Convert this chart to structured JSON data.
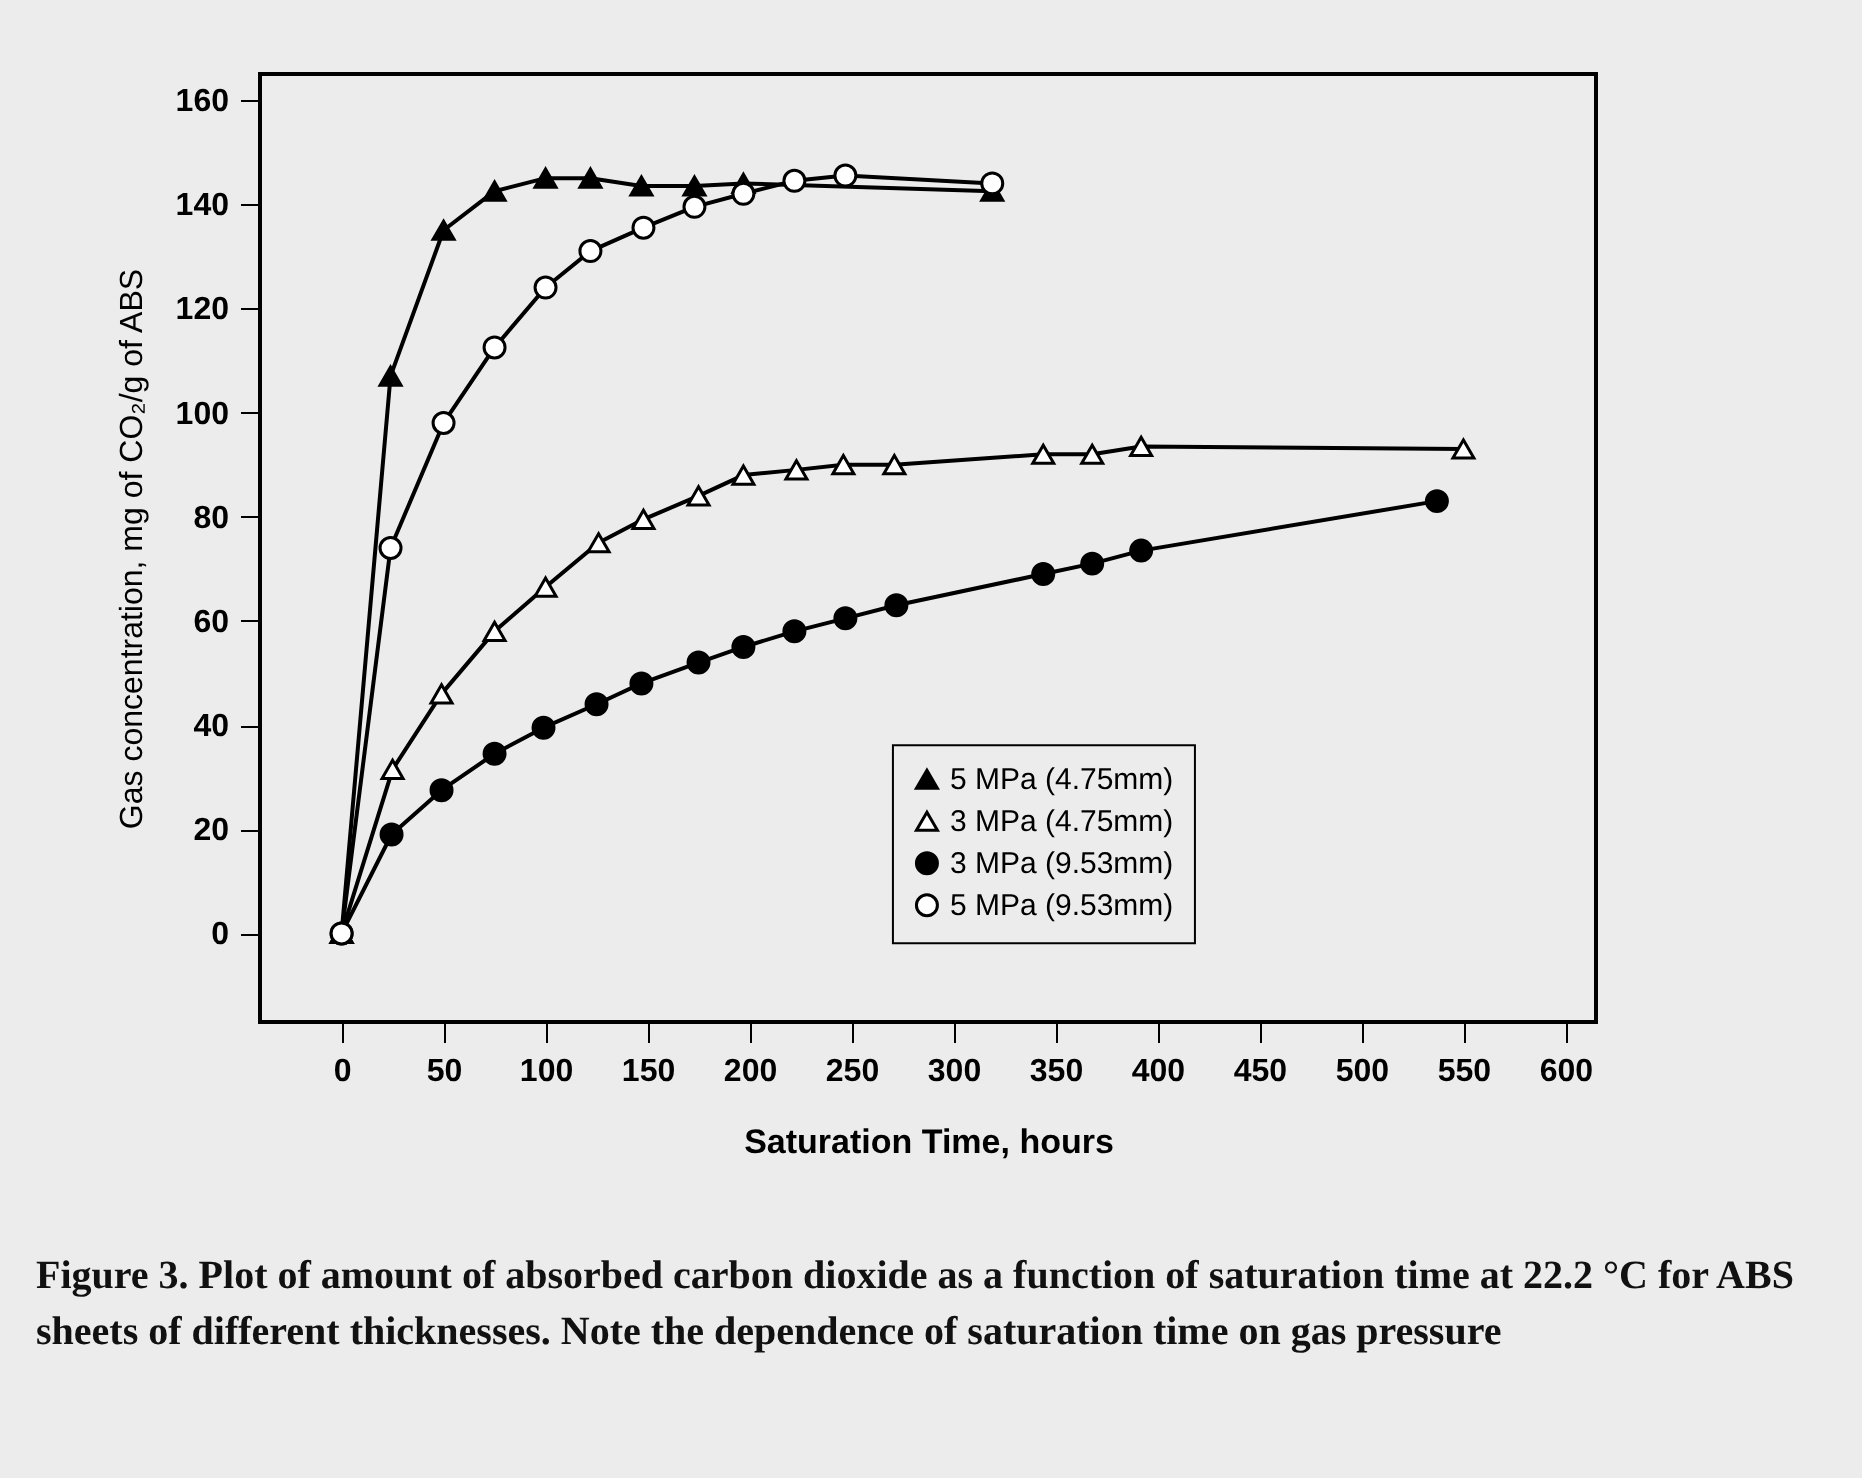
{
  "chart_data": {
    "type": "line",
    "xlabel": "Saturation Time, hours",
    "ylabel": "Gas concentration, mg of CO₂/g of ABS",
    "annotations": [
      "Figure 3. Plot of amount of absorbed carbon dioxide as a function of saturation time at 22.2 °C for ABS sheets of different thicknesses. Note the dependence of saturation time on gas pressure"
    ],
    "xlim": [
      -40,
      615
    ],
    "ylim": [
      -17,
      165
    ],
    "xticks": [
      0,
      50,
      100,
      150,
      200,
      250,
      300,
      350,
      400,
      450,
      500,
      550,
      600
    ],
    "yticks": [
      0,
      20,
      40,
      60,
      80,
      100,
      120,
      140,
      160
    ],
    "grid": false,
    "legend": "bottom right",
    "series": [
      {
        "name": "5 MPa (4.75mm)",
        "color": "#000000",
        "marker": "triangle",
        "x": [
          0,
          24,
          50,
          75,
          100,
          122,
          147,
          173,
          197,
          319
        ],
        "values": [
          0,
          107,
          135,
          142.5,
          145,
          145,
          143.5,
          143.5,
          144,
          142.5
        ]
      },
      {
        "name": "3 MPa (4.75mm)",
        "color": "#000000",
        "marker": "triangle",
        "colors": [
          "#ffffff",
          "#ffffff",
          "#ffffff",
          "#ffffff",
          "#ffffff",
          "#ffffff",
          "#ffffff",
          "#ffffff",
          "#ffffff",
          "#ffffff",
          "#ffffff",
          "#ffffff",
          "#ffffff",
          "#ffffff",
          "#ffffff",
          "#ffffff"
        ],
        "x": [
          0,
          25,
          49,
          75,
          100,
          126,
          148,
          175,
          197,
          223,
          246,
          271,
          344,
          368,
          392,
          550
        ],
        "values": [
          0,
          31.5,
          46,
          58,
          66.5,
          75,
          79.5,
          84,
          88,
          89,
          90,
          90,
          92,
          92,
          93.5,
          93
        ]
      },
      {
        "name": "3 MPa (9.53mm)",
        "color": "#000000",
        "marker": "circle",
        "x": [
          0,
          24.5,
          49,
          75,
          99,
          125,
          147,
          175,
          197,
          222,
          247,
          272,
          344,
          368,
          392,
          537
        ],
        "values": [
          0,
          19,
          27.5,
          34.5,
          39.5,
          44,
          48,
          52,
          55,
          58,
          60.5,
          63,
          69,
          71,
          73.5,
          83
        ]
      },
      {
        "name": "5 MPa (9.53mm)",
        "color": "#000000",
        "marker": "circle",
        "colors": [
          "#ffffff",
          "#ffffff",
          "#ffffff",
          "#ffffff",
          "#ffffff",
          "#ffffff",
          "#ffffff",
          "#ffffff",
          "#ffffff",
          "#ffffff",
          "#ffffff",
          "#ffffff"
        ],
        "x": [
          0,
          24,
          50,
          75,
          100,
          122,
          148,
          173,
          197,
          222,
          247,
          319
        ],
        "values": [
          0,
          74,
          98,
          112.5,
          124,
          131,
          135.5,
          139.5,
          142,
          144.5,
          145.5,
          144
        ]
      }
    ]
  }
}
